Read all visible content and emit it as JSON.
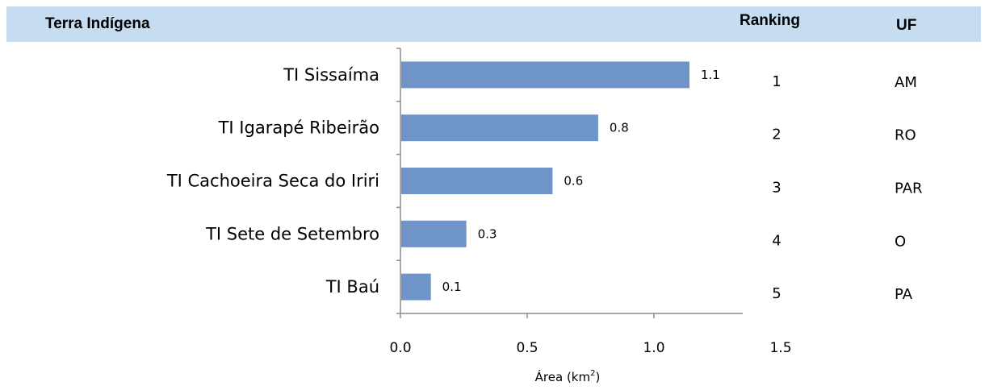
{
  "header": {
    "name_label": "Terra Indígena",
    "ranking_label": "Ranking",
    "uf_label": "UF"
  },
  "chart_data": {
    "type": "bar",
    "orientation": "horizontal",
    "categories": [
      "TI Sissaíma",
      "TI Igarapé Ribeirão",
      "TI Cachoeira Seca do Iriri",
      "TI Sete de Setembro",
      "TI Baú"
    ],
    "values": [
      1.14,
      0.78,
      0.6,
      0.26,
      0.12
    ],
    "data_labels": [
      "1.1",
      "0.8",
      "0.6",
      "0.3",
      "0.1"
    ],
    "xlabel_main": "Área (km",
    "xlabel_sup": "2",
    "xlabel_close": ")",
    "xlim": [
      0,
      1.5
    ],
    "xticks": [
      "0.0",
      "0.5",
      "1.0",
      "1.5"
    ],
    "bar_color": "#6f94c7",
    "rankings": [
      "1",
      "2",
      "3",
      "4",
      "5"
    ],
    "ufs": [
      "AM",
      "RO",
      "PAR",
      "O",
      "PA"
    ]
  }
}
